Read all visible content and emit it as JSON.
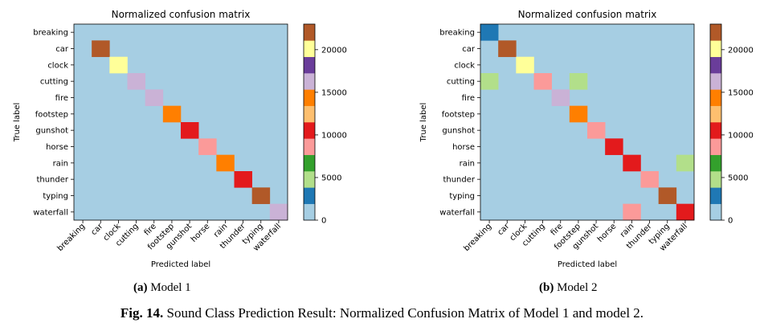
{
  "colors": {
    "background": "#a6cee3",
    "palette": [
      "#a6cee3",
      "#1f78b4",
      "#b2df8a",
      "#33a02c",
      "#fb9a99",
      "#e31a1c",
      "#fdbf6f",
      "#ff7f00",
      "#cab2d6",
      "#6a3d9a",
      "#ffff99",
      "#b15928"
    ]
  },
  "chart_data": [
    {
      "type": "heatmap",
      "title": "Normalized confusion matrix",
      "xlabel": "Predicted label",
      "ylabel": "True label",
      "classes": [
        "breaking",
        "car",
        "clock",
        "cutting",
        "fire",
        "footstep",
        "gunshot",
        "horse",
        "rain",
        "thunder",
        "typing",
        "waterfall"
      ],
      "colorbar": {
        "ticks": [
          0,
          5000,
          10000,
          15000,
          20000
        ],
        "max": 23000,
        "levels": 12
      },
      "cells": [
        {
          "row": 1,
          "col": 1,
          "value": 23000
        },
        {
          "row": 2,
          "col": 2,
          "value": 20500
        },
        {
          "row": 3,
          "col": 3,
          "value": 17000
        },
        {
          "row": 4,
          "col": 4,
          "value": 17000
        },
        {
          "row": 5,
          "col": 5,
          "value": 15000
        },
        {
          "row": 6,
          "col": 6,
          "value": 10500
        },
        {
          "row": 7,
          "col": 7,
          "value": 9500
        },
        {
          "row": 8,
          "col": 8,
          "value": 13500
        },
        {
          "row": 9,
          "col": 9,
          "value": 10500
        },
        {
          "row": 10,
          "col": 10,
          "value": 23000
        },
        {
          "row": 11,
          "col": 11,
          "value": 17000
        }
      ],
      "sublabel_letter": "(a)",
      "sublabel_text": "Model 1"
    },
    {
      "type": "heatmap",
      "title": "Normalized confusion matrix",
      "xlabel": "Predicted label",
      "ylabel": "True label",
      "classes": [
        "breaking",
        "car",
        "clock",
        "cutting",
        "fire",
        "footstep",
        "gunshot",
        "horse",
        "rain",
        "thunder",
        "typing",
        "waterfall"
      ],
      "colorbar": {
        "ticks": [
          0,
          5000,
          10000,
          15000,
          20000
        ],
        "max": 23000,
        "levels": 12
      },
      "cells": [
        {
          "row": 0,
          "col": 0,
          "value": 3000
        },
        {
          "row": 1,
          "col": 1,
          "value": 23000
        },
        {
          "row": 2,
          "col": 2,
          "value": 20500
        },
        {
          "row": 3,
          "col": 0,
          "value": 5000
        },
        {
          "row": 3,
          "col": 3,
          "value": 9500
        },
        {
          "row": 3,
          "col": 5,
          "value": 5000
        },
        {
          "row": 4,
          "col": 4,
          "value": 17000
        },
        {
          "row": 5,
          "col": 5,
          "value": 15000
        },
        {
          "row": 6,
          "col": 6,
          "value": 9500
        },
        {
          "row": 7,
          "col": 7,
          "value": 10500
        },
        {
          "row": 8,
          "col": 8,
          "value": 10500
        },
        {
          "row": 8,
          "col": 11,
          "value": 5000
        },
        {
          "row": 9,
          "col": 9,
          "value": 9500
        },
        {
          "row": 10,
          "col": 10,
          "value": 23000
        },
        {
          "row": 11,
          "col": 8,
          "value": 9500
        },
        {
          "row": 11,
          "col": 11,
          "value": 10500
        }
      ],
      "sublabel_letter": "(b)",
      "sublabel_text": "Model 2"
    }
  ],
  "caption": {
    "label": "Fig. 14.",
    "text": "Sound Class Prediction Result: Normalized Confusion Matrix of Model 1 and model 2."
  }
}
